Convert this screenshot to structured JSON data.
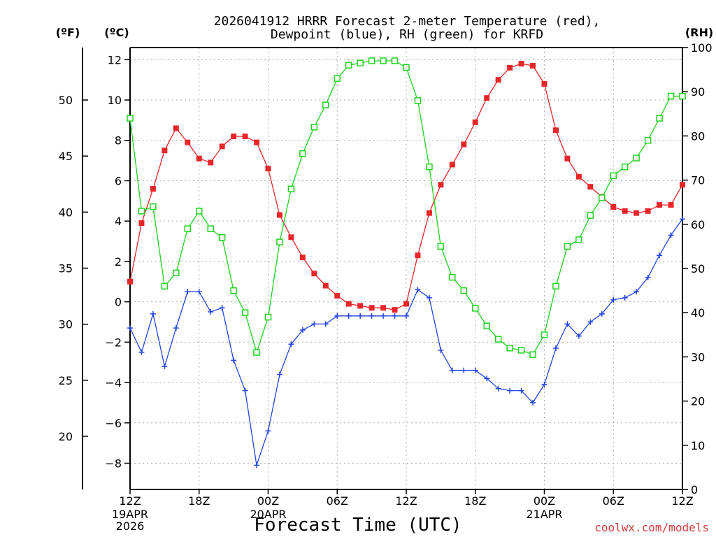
{
  "title_line1": "2026041912 HRRR Forecast 2-meter Temperature (red),",
  "title_line2": "Dewpoint (blue), RH (green) for KRFD",
  "unit_f": "(ºF)",
  "unit_c": "(ºC)",
  "unit_rh": "(RH)",
  "xlabel": "Forecast Time (UTC)",
  "credit": "coolwx.com/models",
  "colors": {
    "temperature": "#e8262a",
    "dewpoint": "#2345e8",
    "rh": "#1ed21e",
    "grid": "#aaaaaa",
    "credit": "#d43c3c"
  },
  "chart_data": {
    "type": "line",
    "x_ticks": [
      {
        "h": 0,
        "label": "12Z",
        "sub": [
          "19APR",
          "2026"
        ]
      },
      {
        "h": 6,
        "label": "18Z",
        "sub": []
      },
      {
        "h": 12,
        "label": "00Z",
        "sub": [
          "20APR"
        ]
      },
      {
        "h": 18,
        "label": "06Z",
        "sub": []
      },
      {
        "h": 24,
        "label": "12Z",
        "sub": []
      },
      {
        "h": 30,
        "label": "18Z",
        "sub": []
      },
      {
        "h": 36,
        "label": "00Z",
        "sub": [
          "21APR"
        ]
      },
      {
        "h": 42,
        "label": "06Z",
        "sub": []
      },
      {
        "h": 48,
        "label": "12Z",
        "sub": []
      }
    ],
    "x_range": [
      0,
      48
    ],
    "y_left_c_range": [
      -9.3,
      12.6
    ],
    "y_left_c_ticks": [
      -8,
      -6,
      -4,
      -2,
      0,
      2,
      4,
      6,
      8,
      10,
      12
    ],
    "y_left_c_tick_labels": [
      "−8",
      "−6",
      "−4",
      "−2",
      "0",
      "2",
      "4",
      "6",
      "8",
      "10",
      "12"
    ],
    "y_far_left_f_ticks": [
      20,
      25,
      30,
      35,
      40,
      45,
      50
    ],
    "y_right_rh_range": [
      0,
      100
    ],
    "y_right_rh_ticks": [
      0,
      10,
      20,
      30,
      40,
      50,
      60,
      70,
      80,
      90,
      100
    ],
    "grid": true,
    "series": [
      {
        "name": "Temperature",
        "color_key": "temperature",
        "marker": "filled-square",
        "unit": "C",
        "values": [
          1.0,
          3.9,
          5.6,
          7.5,
          8.6,
          7.9,
          7.1,
          6.9,
          7.7,
          8.2,
          8.2,
          7.9,
          6.6,
          4.3,
          3.2,
          2.2,
          1.4,
          0.8,
          0.3,
          -0.1,
          -0.2,
          -0.3,
          -0.3,
          -0.4,
          -0.1,
          2.3,
          4.4,
          5.8,
          6.8,
          7.8,
          8.9,
          10.1,
          11.0,
          11.6,
          11.8,
          11.7,
          10.8,
          8.5,
          7.1,
          6.2,
          5.7,
          5.2,
          4.7,
          4.5,
          4.4,
          4.5,
          4.8,
          4.8,
          5.8
        ]
      },
      {
        "name": "Dewpoint",
        "color_key": "dewpoint",
        "marker": "plus",
        "unit": "C",
        "values": [
          -1.3,
          -2.5,
          -0.6,
          -3.2,
          -1.3,
          0.5,
          0.5,
          -0.5,
          -0.3,
          -2.9,
          -4.4,
          -8.1,
          -6.4,
          -3.6,
          -2.1,
          -1.4,
          -1.1,
          -1.1,
          -0.7,
          -0.7,
          -0.7,
          -0.7,
          -0.7,
          -0.7,
          -0.7,
          0.6,
          0.2,
          -2.4,
          -3.4,
          -3.4,
          -3.4,
          -3.8,
          -4.3,
          -4.4,
          -4.4,
          -5.0,
          -4.1,
          -2.3,
          -1.1,
          -1.7,
          -1.0,
          -0.6,
          0.1,
          0.2,
          0.5,
          1.2,
          2.3,
          3.3,
          4.1
        ]
      },
      {
        "name": "RH",
        "color_key": "rh",
        "marker": "open-square",
        "unit": "%",
        "values": [
          84,
          63,
          64,
          46,
          49,
          59,
          63,
          59,
          57,
          45,
          40,
          31,
          39,
          56,
          68,
          76,
          82,
          87,
          93,
          96,
          96.5,
          97,
          97,
          97,
          95.5,
          88,
          73,
          55,
          48,
          45,
          41,
          37,
          34,
          32,
          31.5,
          30.5,
          35,
          46,
          55,
          56.5,
          62,
          66,
          71,
          73,
          75,
          79,
          84,
          89,
          89
        ]
      }
    ]
  }
}
